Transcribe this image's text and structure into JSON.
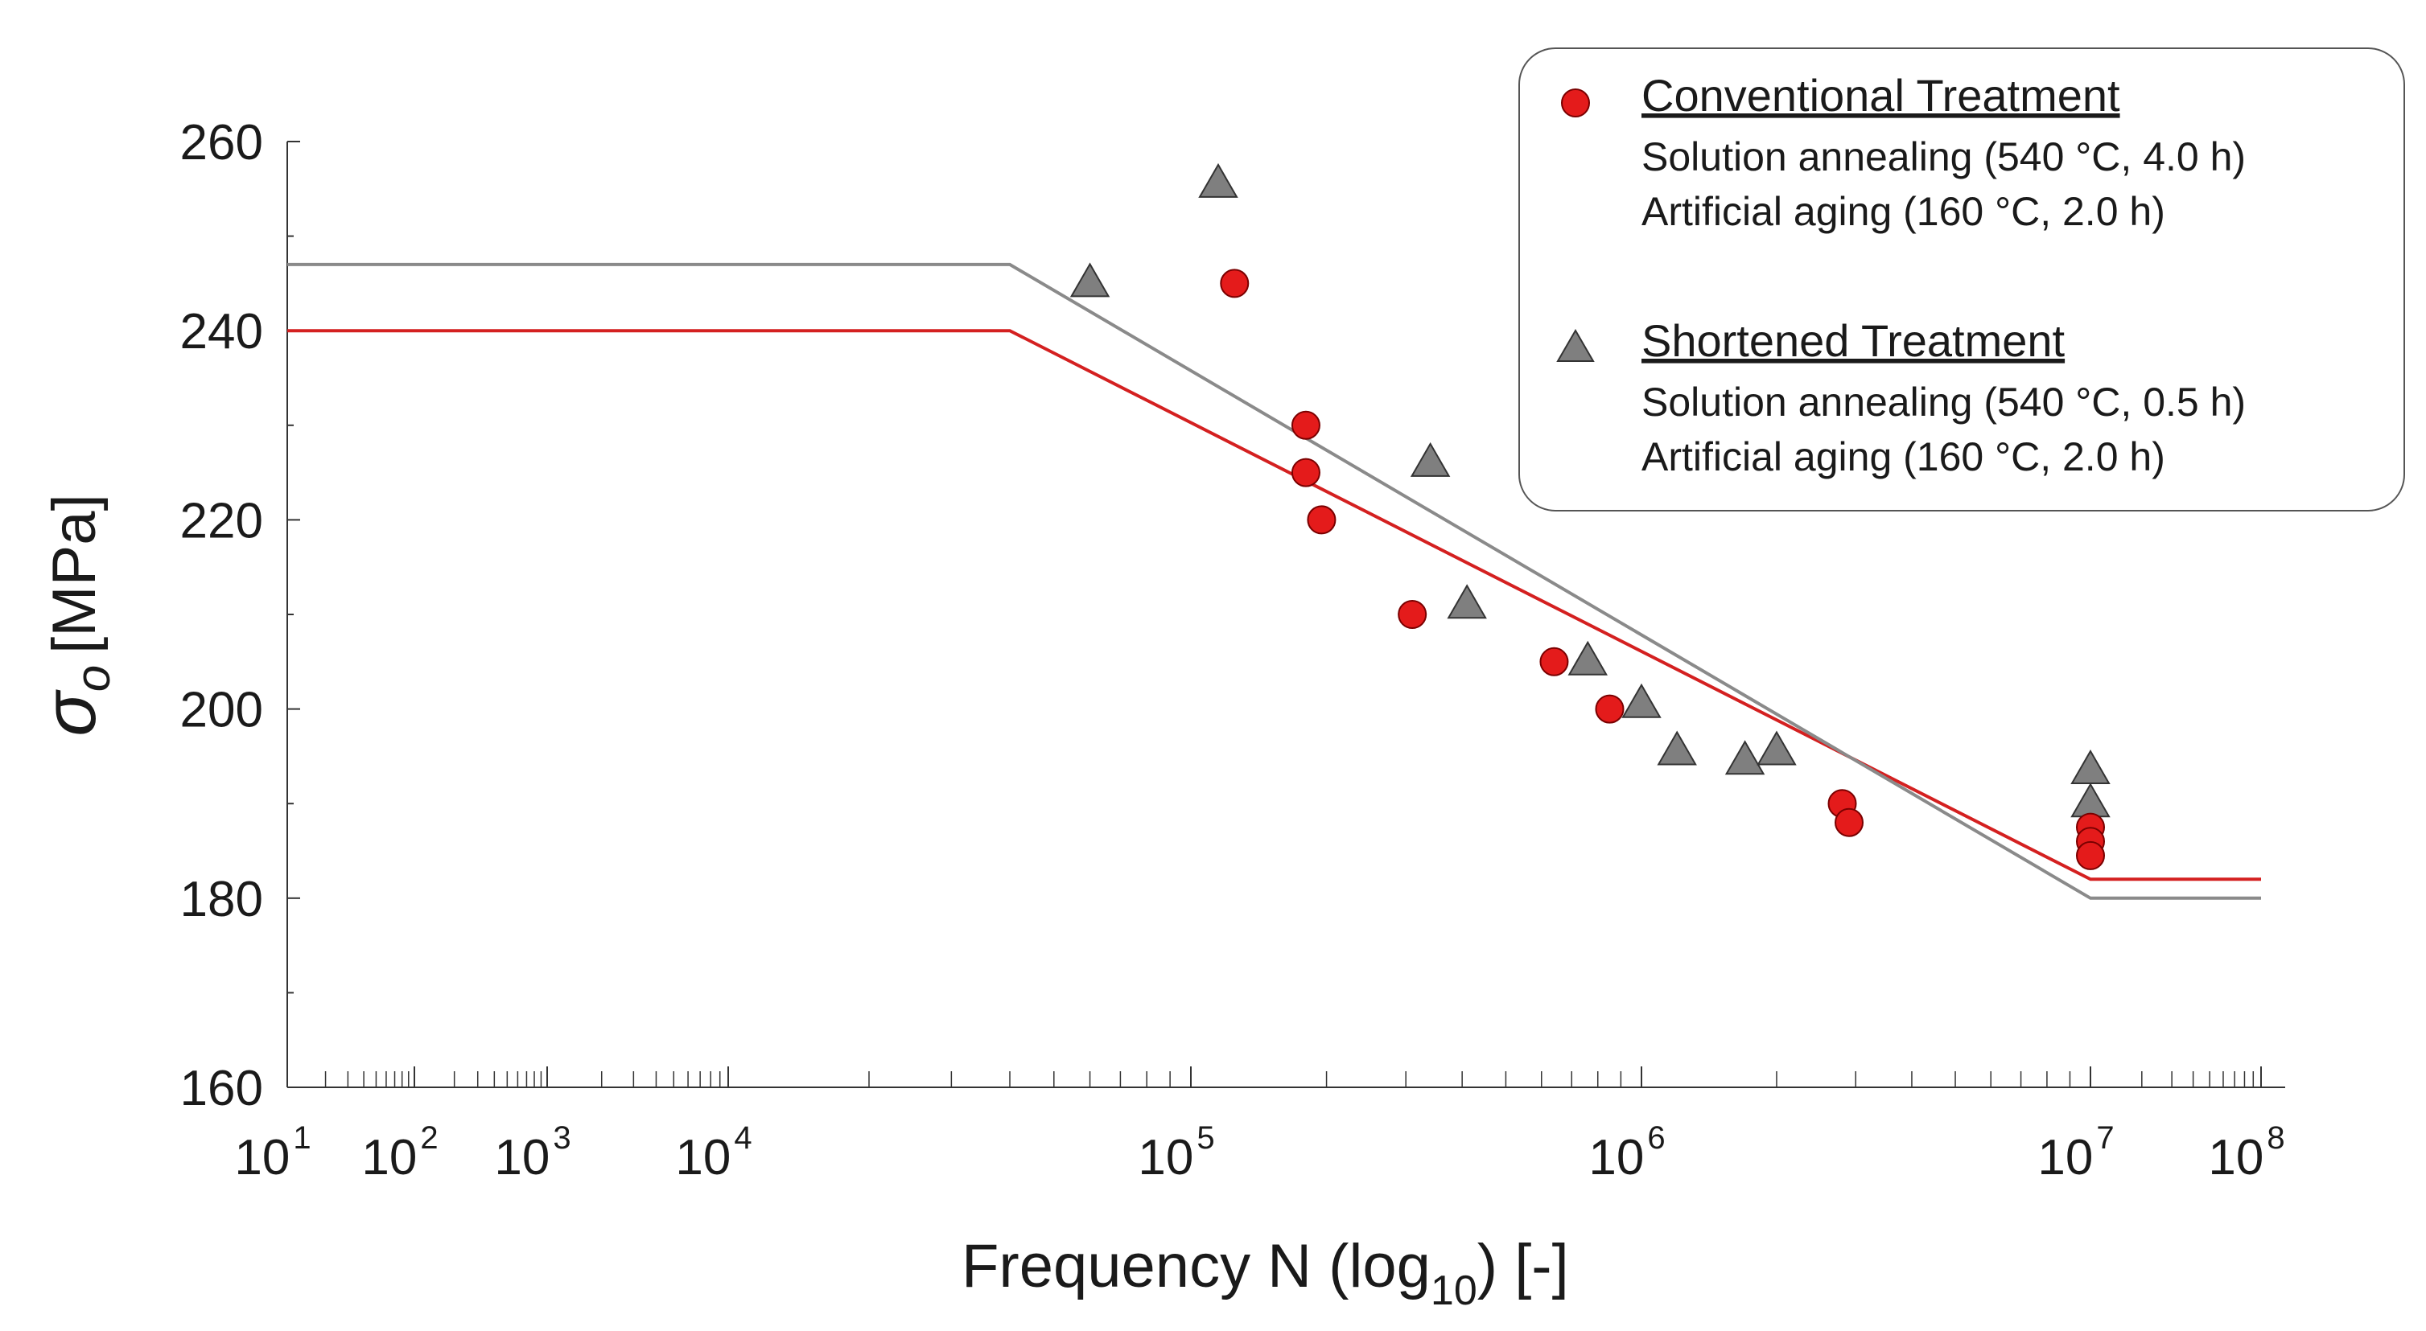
{
  "chart_data": {
    "type": "scatter",
    "title": "",
    "xlabel_main": "Frequency  N (log",
    "xlabel_sub": "10",
    "xlabel_end": ") [-]",
    "ylabel_symbol": "σ",
    "ylabel_sub": "o",
    "ylabel_unit": "[MPa]",
    "ylim": [
      160,
      260
    ],
    "y_ticks": [
      "160",
      "180",
      "200",
      "220",
      "240",
      "260"
    ],
    "x_ticks": [
      {
        "base": "10",
        "exp": "1"
      },
      {
        "base": "10",
        "exp": "2"
      },
      {
        "base": "10",
        "exp": "3"
      },
      {
        "base": "10",
        "exp": "4"
      },
      {
        "base": "10",
        "exp": "5"
      },
      {
        "base": "10",
        "exp": "6"
      },
      {
        "base": "10",
        "exp": "7"
      },
      {
        "base": "10",
        "exp": "8"
      }
    ],
    "grid": false,
    "legend_placement": "top-right",
    "series": [
      {
        "name": "Conventional Treatment",
        "details": [
          "Solution annealing (540 °C, 4.0 h)",
          "Artificial aging (160 °C, 2.0 h)"
        ],
        "marker": "circle",
        "color": "#e41b1b",
        "points": [
          [
            125000,
            245
          ],
          [
            180000,
            230
          ],
          [
            180000,
            225
          ],
          [
            195000,
            220
          ],
          [
            310000,
            210
          ],
          [
            640000,
            205
          ],
          [
            850000,
            200
          ],
          [
            2800000,
            190
          ],
          [
            2900000,
            188
          ],
          [
            10000000,
            187.5
          ],
          [
            10000000,
            186
          ],
          [
            10000000,
            184.5
          ]
        ],
        "curve": [
          [
            10,
            240
          ],
          [
            40000,
            240
          ],
          [
            10000000,
            182
          ],
          [
            100000000,
            182
          ]
        ],
        "curve_color": "#d42020"
      },
      {
        "name": "Shortened Treatment",
        "details": [
          "Solution annealing (540 °C, 0.5 h)",
          "Artificial aging (160 °C, 2.0 h)"
        ],
        "marker": "triangle",
        "color": "#7f7f7f",
        "points": [
          [
            60000,
            245
          ],
          [
            115000,
            255.5
          ],
          [
            340000,
            226
          ],
          [
            410000,
            211
          ],
          [
            760000,
            205
          ],
          [
            1000000,
            200.5
          ],
          [
            1200000,
            195.5
          ],
          [
            1700000,
            194.5
          ],
          [
            2000000,
            195.5
          ],
          [
            10000000,
            193.5
          ],
          [
            10000000,
            190
          ]
        ],
        "curve": [
          [
            10,
            247
          ],
          [
            40000,
            247
          ],
          [
            10000000,
            180
          ],
          [
            100000000,
            180
          ]
        ],
        "curve_color": "#8a8a8a"
      }
    ]
  }
}
